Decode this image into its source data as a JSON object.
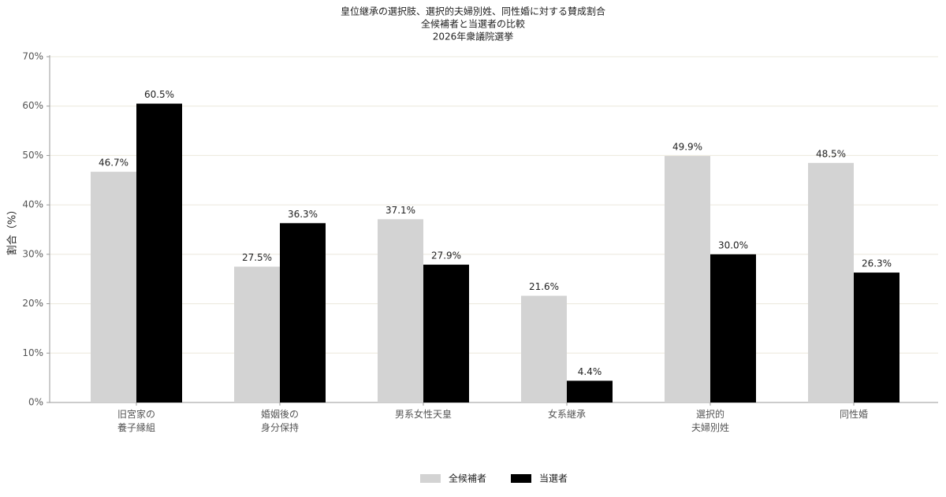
{
  "chart_data": {
    "type": "bar",
    "title": [
      "皇位継承の選択肢、選択的夫婦別姓、同性婚に対する賛成割合",
      "全候補者と当選者の比較",
      "2026年衆議院選挙"
    ],
    "ylabel": "割合（%）",
    "categories": [
      "旧宮家の\n養子縁組",
      "婚姻後の\n身分保持",
      "男系女性天皇",
      "女系継承",
      "選択的\n夫婦別姓",
      "同性婚"
    ],
    "series": [
      {
        "name": "全候補者",
        "color": "#d3d3d3",
        "values": [
          46.7,
          27.5,
          37.1,
          21.6,
          49.9,
          48.5
        ],
        "value_labels": [
          "46.7%",
          "27.5%",
          "37.1%",
          "21.6%",
          "49.9%",
          "48.5%"
        ]
      },
      {
        "name": "当選者",
        "color": "#000000",
        "values": [
          60.5,
          36.3,
          27.9,
          4.4,
          30.0,
          26.3
        ],
        "value_labels": [
          "60.5%",
          "36.3%",
          "27.9%",
          "4.4%",
          "30.0%",
          "26.3%"
        ]
      }
    ],
    "ylim": [
      0,
      70
    ],
    "yticks": [
      {
        "value": 0,
        "label": "0%"
      },
      {
        "value": 10,
        "label": "10%"
      },
      {
        "value": 20,
        "label": "20%"
      },
      {
        "value": 30,
        "label": "30%"
      },
      {
        "value": 40,
        "label": "40%"
      },
      {
        "value": 50,
        "label": "50%"
      },
      {
        "value": 60,
        "label": "60%"
      },
      {
        "value": 70,
        "label": "70%"
      }
    ],
    "grid": true,
    "legend": "bottom"
  }
}
